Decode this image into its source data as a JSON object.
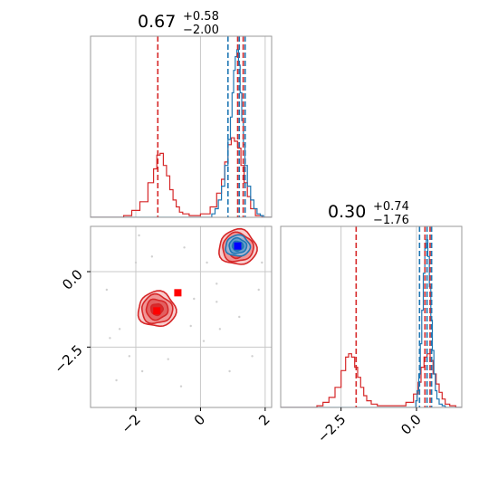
{
  "colors": {
    "red": "#d62728",
    "blue": "#1f77b4",
    "grid": "#c8c8c8",
    "scatter": "#d0d0d0",
    "frame": "#9a9a9a"
  },
  "chart_data": [
    {
      "panel": "marginal-param-1",
      "type": "histogram",
      "title_value": "0.67",
      "title_plus": "+0.58",
      "title_minus": "−2.00",
      "xlim": [
        -3.4,
        2.2
      ],
      "grid_x": [
        -2,
        0,
        2
      ],
      "series": [
        {
          "color": "red",
          "bin_centers": [
            -2.25,
            -2.0,
            -1.75,
            -1.5,
            -1.4,
            -1.3,
            -1.2,
            -1.1,
            -1.0,
            -0.9,
            -0.8,
            -0.7,
            -0.6,
            -0.5,
            -0.2,
            0.2,
            0.4,
            0.6,
            0.7,
            0.8,
            0.9,
            1.0,
            1.1,
            1.2,
            1.3,
            1.4,
            1.5,
            1.6,
            1.8
          ],
          "counts": [
            0.01,
            0.04,
            0.09,
            0.2,
            0.28,
            0.36,
            0.37,
            0.3,
            0.24,
            0.16,
            0.1,
            0.06,
            0.03,
            0.02,
            0.01,
            0.02,
            0.06,
            0.14,
            0.22,
            0.32,
            0.42,
            0.46,
            0.44,
            0.4,
            0.3,
            0.2,
            0.12,
            0.05,
            0.01
          ],
          "quantile_lines": [
            -1.32,
            1.15,
            1.32
          ]
        },
        {
          "color": "blue",
          "bin_centers": [
            0.4,
            0.5,
            0.6,
            0.7,
            0.8,
            0.9,
            0.95,
            1.0,
            1.05,
            1.1,
            1.15,
            1.2,
            1.25,
            1.3,
            1.35,
            1.4,
            1.5,
            1.6,
            1.7,
            1.8,
            1.9
          ],
          "counts": [
            0.02,
            0.05,
            0.1,
            0.18,
            0.3,
            0.45,
            0.58,
            0.72,
            0.85,
            0.93,
            0.97,
            0.88,
            0.72,
            0.56,
            0.42,
            0.3,
            0.18,
            0.1,
            0.05,
            0.02,
            0.01
          ],
          "quantile_lines": [
            0.85,
            1.2,
            1.38
          ]
        }
      ]
    },
    {
      "panel": "marginal-param-2",
      "type": "histogram",
      "title_value": "0.30",
      "title_plus": "+0.74",
      "title_minus": "−1.76",
      "xlim": [
        -4.5,
        1.5
      ],
      "xticks": [
        "−2.5",
        "0.0"
      ],
      "xtick_values": [
        -2.5,
        0.0
      ],
      "grid_x": [
        -2.5,
        0.0
      ],
      "series": [
        {
          "color": "red",
          "bin_centers": [
            -3.2,
            -3.0,
            -2.8,
            -2.6,
            -2.4,
            -2.3,
            -2.2,
            -2.1,
            -2.0,
            -1.9,
            -1.8,
            -1.7,
            -1.6,
            -1.4,
            -1.2,
            -0.5,
            -0.2,
            0.0,
            0.1,
            0.2,
            0.3,
            0.4,
            0.5,
            0.6,
            0.7,
            0.8,
            0.9,
            1.0,
            1.2
          ],
          "counts": [
            0.01,
            0.03,
            0.06,
            0.12,
            0.22,
            0.3,
            0.32,
            0.3,
            0.24,
            0.18,
            0.12,
            0.07,
            0.04,
            0.02,
            0.01,
            0.01,
            0.03,
            0.08,
            0.15,
            0.24,
            0.3,
            0.32,
            0.28,
            0.2,
            0.14,
            0.09,
            0.05,
            0.02,
            0.01
          ],
          "quantile_lines": [
            -2.0,
            0.28,
            0.45
          ]
        },
        {
          "color": "blue",
          "bin_centers": [
            0.0,
            0.05,
            0.1,
            0.15,
            0.2,
            0.25,
            0.3,
            0.35,
            0.4,
            0.45,
            0.5,
            0.55,
            0.6,
            0.65,
            0.7,
            0.8,
            0.9
          ],
          "counts": [
            0.04,
            0.1,
            0.2,
            0.38,
            0.58,
            0.8,
            0.95,
            1.0,
            0.9,
            0.72,
            0.52,
            0.34,
            0.2,
            0.1,
            0.05,
            0.02,
            0.01
          ],
          "quantile_lines": [
            0.1,
            0.35,
            0.5
          ]
        }
      ]
    },
    {
      "panel": "joint-param-1-vs-param-2",
      "type": "contour",
      "xlim": [
        -3.4,
        2.2
      ],
      "ylim": [
        -4.5,
        1.5
      ],
      "xticks": [
        "−2",
        "0",
        "2"
      ],
      "xtick_values": [
        -2,
        0,
        2
      ],
      "yticks": [
        "0.0",
        "−2.5"
      ],
      "ytick_values": [
        0.0,
        -2.5
      ],
      "grid_x": [
        -2,
        0,
        2
      ],
      "grid_y": [
        0.0,
        -2.5
      ],
      "modes": [
        {
          "color": "red",
          "center_x": -1.35,
          "center_y": -1.25,
          "rx": 1.0,
          "ry": 1.0,
          "levels": [
            1.0,
            0.82,
            0.58,
            0.32
          ]
        },
        {
          "color": "red",
          "center_x": 1.15,
          "center_y": 0.8,
          "rx": 1.0,
          "ry": 1.0,
          "levels": [
            1.0,
            0.82,
            0.58,
            0.32
          ]
        },
        {
          "color": "blue",
          "center_x": 1.15,
          "center_y": 0.85,
          "rx": 0.65,
          "ry": 0.6,
          "levels": [
            1.0,
            0.72,
            0.45
          ]
        }
      ],
      "markers": [
        {
          "color": "red",
          "x": -1.35,
          "y": -1.3
        },
        {
          "color": "red",
          "x": -0.7,
          "y": -0.7
        },
        {
          "color": "blue",
          "x": 1.15,
          "y": 0.85
        }
      ],
      "scatter_points": [
        [
          -2.9,
          -0.6
        ],
        [
          -2.5,
          -1.9
        ],
        [
          -2.0,
          0.3
        ],
        [
          -1.8,
          -3.3
        ],
        [
          -1.0,
          -2.9
        ],
        [
          -0.6,
          -3.8
        ],
        [
          -0.3,
          -1.8
        ],
        [
          0.1,
          -2.3
        ],
        [
          0.5,
          -0.4
        ],
        [
          0.6,
          -1.9
        ],
        [
          1.2,
          -1.5
        ],
        [
          1.8,
          -0.6
        ],
        [
          0.2,
          0.3
        ],
        [
          -0.5,
          0.8
        ],
        [
          -2.2,
          -2.8
        ],
        [
          -1.5,
          0.5
        ],
        [
          0.9,
          -3.3
        ],
        [
          1.6,
          -2.8
        ],
        [
          -2.6,
          -3.6
        ],
        [
          -1.9,
          1.2
        ],
        [
          0.5,
          -1.0
        ],
        [
          0.7,
          1.0
        ],
        [
          -0.2,
          -0.9
        ],
        [
          1.9,
          0.3
        ],
        [
          -2.8,
          -2.2
        ]
      ]
    }
  ]
}
